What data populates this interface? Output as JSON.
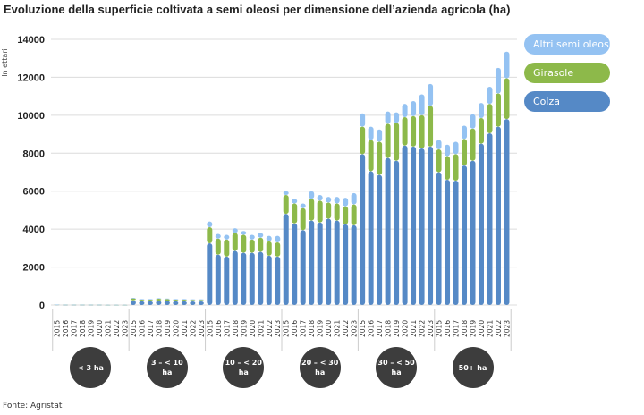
{
  "title": "Evoluzione della superficie coltivata a semi oleosi per dimensione dell’azienda agricola (ha)",
  "source": "Fonte: Agristat",
  "colors": {
    "Colza": "#5589c6",
    "Girasole": "#8db94a",
    "Altri semi oleosi": "#94c2f2"
  },
  "chart_data": {
    "type": "bar",
    "stacked": true,
    "title": "Evoluzione della superficie coltivata a semi oleosi per dimensione dell’azienda agricola (ha)",
    "ylabel": "In ettari",
    "ylim": [
      0,
      14000
    ],
    "yticks": [
      "0",
      "2000",
      "4000",
      "6000",
      "8000",
      "10000",
      "12000",
      "14000"
    ],
    "grid": true,
    "legend_position": "top-right",
    "groups": [
      "< 3 ha",
      "3 – < 10 ha",
      "10 – < 20 ha",
      "20 – < 30 ha",
      "30 – < 50 ha",
      "50+ ha"
    ],
    "years": [
      "2015",
      "2016",
      "2017",
      "2018",
      "2019",
      "2020",
      "2021",
      "2022",
      "2023"
    ],
    "series": [
      {
        "name": "Colza",
        "values": [
          [
            15,
            10,
            10,
            10,
            10,
            10,
            5,
            5,
            5
          ],
          [
            250,
            200,
            200,
            230,
            220,
            200,
            200,
            190,
            190
          ],
          [
            3250,
            2650,
            2550,
            2850,
            2750,
            2750,
            2800,
            2600,
            2550
          ],
          [
            4800,
            4300,
            3950,
            4450,
            4350,
            4550,
            4450,
            4250,
            4200
          ],
          [
            7950,
            7050,
            6850,
            7750,
            7600,
            8400,
            8350,
            8250,
            8350
          ],
          [
            7000,
            6600,
            6550,
            7350,
            7600,
            8500,
            9050,
            9400,
            9800
          ]
        ]
      },
      {
        "name": "Girasole",
        "values": [
          [
            5,
            5,
            5,
            5,
            5,
            5,
            3,
            3,
            3
          ],
          [
            100,
            80,
            80,
            100,
            90,
            80,
            80,
            80,
            80
          ],
          [
            850,
            850,
            900,
            950,
            950,
            700,
            750,
            750,
            750
          ],
          [
            1000,
            1050,
            1150,
            1150,
            1150,
            850,
            900,
            950,
            1100
          ],
          [
            1450,
            1650,
            1750,
            1800,
            2000,
            1500,
            1600,
            1750,
            2150
          ],
          [
            1200,
            1250,
            1400,
            1400,
            1700,
            1350,
            1550,
            1750,
            2150
          ]
        ]
      },
      {
        "name": "Altri semi oleosi",
        "values": [
          [
            3,
            3,
            3,
            3,
            3,
            3,
            2,
            2,
            2
          ],
          [
            30,
            30,
            30,
            30,
            30,
            30,
            30,
            30,
            30
          ],
          [
            300,
            250,
            250,
            250,
            200,
            250,
            250,
            300,
            350
          ],
          [
            200,
            250,
            250,
            400,
            300,
            300,
            350,
            450,
            600
          ],
          [
            700,
            700,
            650,
            650,
            550,
            700,
            800,
            1100,
            1150
          ],
          [
            500,
            600,
            650,
            700,
            750,
            800,
            900,
            1350,
            1400
          ]
        ]
      }
    ]
  }
}
